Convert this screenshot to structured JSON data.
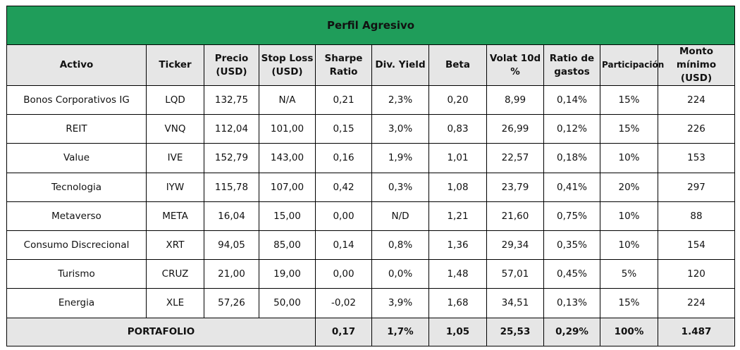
{
  "title": "Perfil Agresivo",
  "columns": [
    "Activo",
    "Ticker",
    "Precio (USD)",
    "Stop Loss (USD)",
    "Sharpe Ratio",
    "Div. Yield",
    "Beta",
    "Volat 10d %",
    "Ratio de gastos",
    "Participación",
    "Monto mínimo (USD)"
  ],
  "rows": [
    [
      "Bonos Corporativos IG",
      "LQD",
      "132,75",
      "N/A",
      "0,21",
      "2,3%",
      "0,20",
      "8,99",
      "0,14%",
      "15%",
      "224"
    ],
    [
      "REIT",
      "VNQ",
      "112,04",
      "101,00",
      "0,15",
      "3,0%",
      "0,83",
      "26,99",
      "0,12%",
      "15%",
      "226"
    ],
    [
      "Value",
      "IVE",
      "152,79",
      "143,00",
      "0,16",
      "1,9%",
      "1,01",
      "22,57",
      "0,18%",
      "10%",
      "153"
    ],
    [
      "Tecnologia",
      "IYW",
      "115,78",
      "107,00",
      "0,42",
      "0,3%",
      "1,08",
      "23,79",
      "0,41%",
      "20%",
      "297"
    ],
    [
      "Metaverso",
      "META",
      "16,04",
      "15,00",
      "0,00",
      "N/D",
      "1,21",
      "21,60",
      "0,75%",
      "10%",
      "88"
    ],
    [
      "Consumo Discrecional",
      "XRT",
      "94,05",
      "85,00",
      "0,14",
      "0,8%",
      "1,36",
      "29,34",
      "0,35%",
      "10%",
      "154"
    ],
    [
      "Turismo",
      "CRUZ",
      "21,00",
      "19,00",
      "0,00",
      "0,0%",
      "1,48",
      "57,01",
      "0,45%",
      "5%",
      "120"
    ],
    [
      "Energia",
      "XLE",
      "57,26",
      "50,00",
      "-0,02",
      "3,9%",
      "1,68",
      "34,51",
      "0,13%",
      "15%",
      "224"
    ]
  ],
  "total": {
    "label": "PORTAFOLIO",
    "sharpe": "0,17",
    "div_yield": "1,7%",
    "beta": "1,05",
    "volat": "25,53",
    "ratio_gastos": "0,29%",
    "participacion": "100%",
    "monto": "1.487"
  }
}
